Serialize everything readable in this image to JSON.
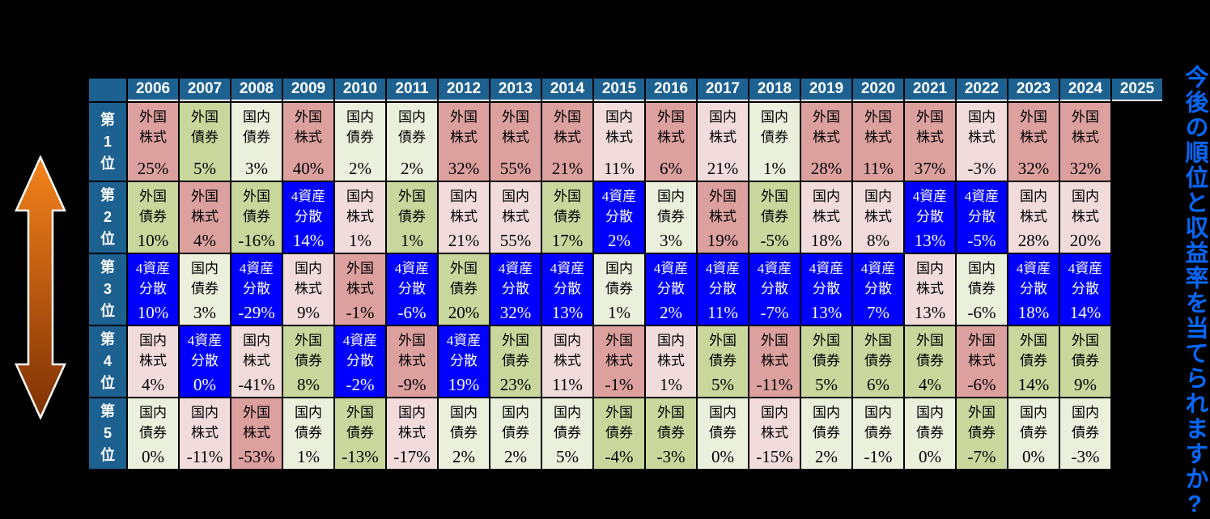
{
  "note": {
    "text": "今後の順位と収益率を当てられますか?",
    "color": "#0568FA"
  },
  "colors": {
    "background": "#000000",
    "header_blue": "#1D6191",
    "header_text": "#FFFFFF",
    "balanced_blue": "#0000FF",
    "arrow_gradient_top": "#F6831C",
    "arrow_gradient_bottom": "#7E3105",
    "note_blue": "#0568FA"
  },
  "icons": {
    "left_arrow": "up-down-gradient-arrow"
  },
  "asset_classes": {
    "foreign_stock": {
      "label": "外国株式",
      "lines": [
        "外国",
        "株式"
      ],
      "bg": "#DCA19E",
      "fg": "#000000"
    },
    "foreign_bond": {
      "label": "外国債券",
      "lines": [
        "外国",
        "債券"
      ],
      "bg": "#C9D79D",
      "fg": "#000000"
    },
    "domestic_stock": {
      "label": "国内株式",
      "lines": [
        "国内",
        "株式"
      ],
      "bg": "#F2DCDB",
      "fg": "#000000"
    },
    "domestic_bond": {
      "label": "国内債券",
      "lines": [
        "国内",
        "債券"
      ],
      "bg": "#EBF0DC",
      "fg": "#000000"
    },
    "balanced": {
      "label": "4資産分散",
      "lines": [
        "4資産",
        "分散"
      ],
      "bg": "#0000FF",
      "fg": "#FFFFFF"
    }
  },
  "chart_data": {
    "type": "table",
    "years": [
      "2006",
      "2007",
      "2008",
      "2009",
      "2010",
      "2011",
      "2012",
      "2013",
      "2014",
      "2015",
      "2016",
      "2017",
      "2018",
      "2019",
      "2020",
      "2021",
      "2022",
      "2023",
      "2024",
      "2025"
    ],
    "rank_labels": [
      "第1位",
      "第2位",
      "第3位",
      "第4位",
      "第5位"
    ],
    "rows": [
      {
        "rank": "第1位",
        "cells": [
          {
            "asset": "foreign_stock",
            "value": "25%"
          },
          {
            "asset": "foreign_bond",
            "value": "5%"
          },
          {
            "asset": "domestic_bond",
            "value": "3%"
          },
          {
            "asset": "foreign_stock",
            "value": "40%"
          },
          {
            "asset": "domestic_bond",
            "value": "2%"
          },
          {
            "asset": "domestic_bond",
            "value": "2%"
          },
          {
            "asset": "foreign_stock",
            "value": "32%"
          },
          {
            "asset": "foreign_stock",
            "value": "55%"
          },
          {
            "asset": "foreign_stock",
            "value": "21%"
          },
          {
            "asset": "domestic_stock",
            "value": "11%"
          },
          {
            "asset": "foreign_stock",
            "value": "6%"
          },
          {
            "asset": "domestic_stock",
            "value": "21%"
          },
          {
            "asset": "domestic_bond",
            "value": "1%"
          },
          {
            "asset": "foreign_stock",
            "value": "28%"
          },
          {
            "asset": "foreign_stock",
            "value": "11%"
          },
          {
            "asset": "foreign_stock",
            "value": "37%"
          },
          {
            "asset": "domestic_stock",
            "value": "-3%"
          },
          {
            "asset": "foreign_stock",
            "value": "32%"
          },
          {
            "asset": "foreign_stock",
            "value": "32%"
          }
        ]
      },
      {
        "rank": "第2位",
        "cells": [
          {
            "asset": "foreign_bond",
            "value": "10%"
          },
          {
            "asset": "foreign_stock",
            "value": "4%"
          },
          {
            "asset": "foreign_bond",
            "value": "-16%"
          },
          {
            "asset": "balanced",
            "value": "14%"
          },
          {
            "asset": "domestic_stock",
            "value": "1%"
          },
          {
            "asset": "foreign_bond",
            "value": "1%"
          },
          {
            "asset": "domestic_stock",
            "value": "21%"
          },
          {
            "asset": "domestic_stock",
            "value": "55%"
          },
          {
            "asset": "foreign_bond",
            "value": "17%"
          },
          {
            "asset": "balanced",
            "value": "2%"
          },
          {
            "asset": "domestic_bond",
            "value": "3%"
          },
          {
            "asset": "foreign_stock",
            "value": "19%"
          },
          {
            "asset": "foreign_bond",
            "value": "-5%"
          },
          {
            "asset": "domestic_stock",
            "value": "18%"
          },
          {
            "asset": "domestic_stock",
            "value": "8%"
          },
          {
            "asset": "balanced",
            "value": "13%"
          },
          {
            "asset": "balanced",
            "value": "-5%"
          },
          {
            "asset": "domestic_stock",
            "value": "28%"
          },
          {
            "asset": "domestic_stock",
            "value": "20%"
          }
        ]
      },
      {
        "rank": "第3位",
        "cells": [
          {
            "asset": "balanced",
            "value": "10%"
          },
          {
            "asset": "domestic_bond",
            "value": "3%"
          },
          {
            "asset": "balanced",
            "value": "-29%"
          },
          {
            "asset": "domestic_stock",
            "value": "9%"
          },
          {
            "asset": "foreign_stock",
            "value": "-1%"
          },
          {
            "asset": "balanced",
            "value": "-6%"
          },
          {
            "asset": "foreign_bond",
            "value": "20%"
          },
          {
            "asset": "balanced",
            "value": "32%"
          },
          {
            "asset": "balanced",
            "value": "13%"
          },
          {
            "asset": "domestic_bond",
            "value": "1%"
          },
          {
            "asset": "balanced",
            "value": "2%"
          },
          {
            "asset": "balanced",
            "value": "11%"
          },
          {
            "asset": "balanced",
            "value": "-7%"
          },
          {
            "asset": "balanced",
            "value": "13%"
          },
          {
            "asset": "balanced",
            "value": "7%"
          },
          {
            "asset": "domestic_stock",
            "value": "13%"
          },
          {
            "asset": "domestic_bond",
            "value": "-6%"
          },
          {
            "asset": "balanced",
            "value": "18%"
          },
          {
            "asset": "balanced",
            "value": "14%"
          }
        ]
      },
      {
        "rank": "第4位",
        "cells": [
          {
            "asset": "domestic_stock",
            "value": "4%"
          },
          {
            "asset": "balanced",
            "value": "0%"
          },
          {
            "asset": "domestic_stock",
            "value": "-41%"
          },
          {
            "asset": "foreign_bond",
            "value": "8%"
          },
          {
            "asset": "balanced",
            "value": "-2%"
          },
          {
            "asset": "foreign_stock",
            "value": "-9%"
          },
          {
            "asset": "balanced",
            "value": "19%"
          },
          {
            "asset": "foreign_bond",
            "value": "23%"
          },
          {
            "asset": "domestic_stock",
            "value": "11%"
          },
          {
            "asset": "foreign_stock",
            "value": "-1%"
          },
          {
            "asset": "domestic_stock",
            "value": "1%"
          },
          {
            "asset": "foreign_bond",
            "value": "5%"
          },
          {
            "asset": "foreign_stock",
            "value": "-11%"
          },
          {
            "asset": "foreign_bond",
            "value": "5%"
          },
          {
            "asset": "foreign_bond",
            "value": "6%"
          },
          {
            "asset": "foreign_bond",
            "value": "4%"
          },
          {
            "asset": "foreign_stock",
            "value": "-6%"
          },
          {
            "asset": "foreign_bond",
            "value": "14%"
          },
          {
            "asset": "foreign_bond",
            "value": "9%"
          }
        ]
      },
      {
        "rank": "第5位",
        "cells": [
          {
            "asset": "domestic_bond",
            "value": "0%"
          },
          {
            "asset": "domestic_stock",
            "value": "-11%"
          },
          {
            "asset": "foreign_stock",
            "value": "-53%"
          },
          {
            "asset": "domestic_bond",
            "value": "1%"
          },
          {
            "asset": "foreign_bond",
            "value": "-13%"
          },
          {
            "asset": "domestic_stock",
            "value": "-17%"
          },
          {
            "asset": "domestic_bond",
            "value": "2%"
          },
          {
            "asset": "domestic_bond",
            "value": "2%"
          },
          {
            "asset": "domestic_bond",
            "value": "5%"
          },
          {
            "asset": "foreign_bond",
            "value": "-4%"
          },
          {
            "asset": "foreign_bond",
            "value": "-3%"
          },
          {
            "asset": "domestic_bond",
            "value": "0%"
          },
          {
            "asset": "domestic_stock",
            "value": "-15%"
          },
          {
            "asset": "domestic_bond",
            "value": "2%"
          },
          {
            "asset": "domestic_bond",
            "value": "-1%"
          },
          {
            "asset": "domestic_bond",
            "value": "0%"
          },
          {
            "asset": "foreign_bond",
            "value": "-7%"
          },
          {
            "asset": "domestic_bond",
            "value": "0%"
          },
          {
            "asset": "domestic_bond",
            "value": "-3%"
          }
        ]
      }
    ]
  }
}
